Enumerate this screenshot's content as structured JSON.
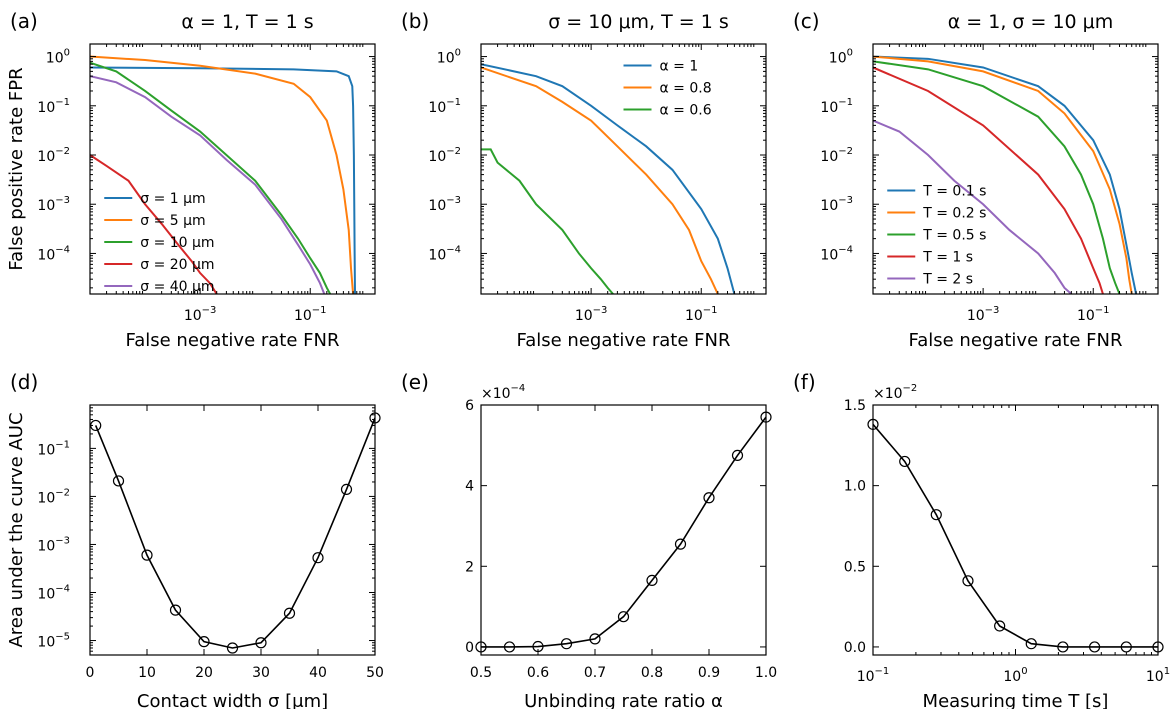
{
  "chart_data": [
    {
      "type": "line",
      "panel": "(a)",
      "title": "α = 1,  T = 1 s",
      "xlabel": "False negative rate FNR",
      "ylabel": "False positive rate FPR",
      "xscale": "log",
      "yscale": "log",
      "xlim": [
        1e-05,
        1.5
      ],
      "ylim": [
        1.5e-05,
        1.8
      ],
      "xticks": [
        {
          "v": 0.001,
          "b": "10",
          "e": "−3"
        },
        {
          "v": 0.1,
          "b": "10",
          "e": "−1"
        }
      ],
      "yticks": [
        {
          "v": 1,
          "b": "10",
          "e": "0"
        },
        {
          "v": 0.1,
          "b": "10",
          "e": "−1"
        },
        {
          "v": 0.01,
          "b": "10",
          "e": "−2"
        },
        {
          "v": 0.001,
          "b": "10",
          "e": "−3"
        },
        {
          "v": 0.0001,
          "b": "10",
          "e": "−4"
        }
      ],
      "legend": "lower-left",
      "legend_offset": [
        0.05,
        0.58
      ],
      "series": [
        {
          "name": "σ = 1 μm",
          "color": "#1f77b4",
          "x": [
            1e-05,
            0.001,
            0.05,
            0.3,
            0.5,
            0.58,
            0.6,
            0.62,
            0.63,
            0.64,
            0.65
          ],
          "y": [
            0.6,
            0.58,
            0.55,
            0.5,
            0.4,
            0.25,
            0.1,
            0.01,
            0.001,
            0.0001,
            1.5e-05
          ]
        },
        {
          "name": "σ = 5 μm",
          "color": "#ff7f0e",
          "x": [
            1e-05,
            0.0001,
            0.001,
            0.01,
            0.05,
            0.1,
            0.2,
            0.3,
            0.4,
            0.5,
            0.55,
            0.6
          ],
          "y": [
            1.0,
            0.85,
            0.65,
            0.45,
            0.28,
            0.15,
            0.05,
            0.01,
            0.002,
            0.0003,
            5e-05,
            1.5e-05
          ]
        },
        {
          "name": "σ = 10 μm",
          "color": "#2ca02c",
          "x": [
            1e-05,
            3e-05,
            0.0001,
            0.0003,
            0.001,
            0.003,
            0.01,
            0.03,
            0.06,
            0.1,
            0.15,
            0.2,
            0.23
          ],
          "y": [
            0.75,
            0.5,
            0.2,
            0.08,
            0.03,
            0.01,
            0.003,
            0.0006,
            0.0002,
            8e-05,
            4e-05,
            2e-05,
            1.5e-05
          ]
        },
        {
          "name": "σ = 20 μm",
          "color": "#d62728",
          "x": [
            1e-05,
            2e-05,
            5e-05,
            0.0001,
            0.0002,
            0.0004,
            0.0007,
            0.001,
            0.0015,
            0.002
          ],
          "y": [
            0.01,
            0.006,
            0.003,
            0.001,
            0.0004,
            0.00015,
            7e-05,
            4e-05,
            2.5e-05,
            1.5e-05
          ]
        },
        {
          "name": "σ = 40 μm",
          "color": "#9467bd",
          "x": [
            1e-05,
            3e-05,
            0.0001,
            0.0003,
            0.001,
            0.003,
            0.01,
            0.03,
            0.06,
            0.1,
            0.15,
            0.18
          ],
          "y": [
            0.4,
            0.3,
            0.15,
            0.06,
            0.025,
            0.008,
            0.0025,
            0.0005,
            0.00015,
            6e-05,
            2.5e-05,
            1.5e-05
          ]
        }
      ]
    },
    {
      "type": "line",
      "panel": "(b)",
      "title": "σ = 10 μm,  T = 1 s",
      "xlabel": "False negative rate FNR",
      "ylabel": "",
      "xscale": "log",
      "yscale": "log",
      "xlim": [
        1e-05,
        1.5
      ],
      "ylim": [
        1.5e-05,
        1.8
      ],
      "xticks": [
        {
          "v": 0.001,
          "b": "10",
          "e": "−3"
        },
        {
          "v": 0.1,
          "b": "10",
          "e": "−1"
        }
      ],
      "yticks": [
        {
          "v": 1,
          "b": "10",
          "e": "0"
        },
        {
          "v": 0.1,
          "b": "10",
          "e": "−1"
        },
        {
          "v": 0.01,
          "b": "10",
          "e": "−2"
        },
        {
          "v": 0.001,
          "b": "10",
          "e": "−3"
        },
        {
          "v": 0.0001,
          "b": "10",
          "e": "−4"
        }
      ],
      "legend": "upper-right",
      "legend_offset": [
        0.5,
        0.05
      ],
      "series": [
        {
          "name": "α = 1",
          "color": "#1f77b4",
          "x": [
            1e-05,
            0.0001,
            0.0003,
            0.001,
            0.003,
            0.01,
            0.03,
            0.1,
            0.2,
            0.3,
            0.4
          ],
          "y": [
            0.7,
            0.4,
            0.25,
            0.1,
            0.04,
            0.015,
            0.005,
            0.0008,
            0.0002,
            5e-05,
            1.5e-05
          ]
        },
        {
          "name": "α = 0.8",
          "color": "#ff7f0e",
          "x": [
            1e-05,
            0.0001,
            0.0003,
            0.001,
            0.003,
            0.01,
            0.03,
            0.06,
            0.1,
            0.15,
            0.2
          ],
          "y": [
            0.6,
            0.25,
            0.12,
            0.05,
            0.015,
            0.004,
            0.001,
            0.0003,
            7e-05,
            3e-05,
            1.5e-05
          ]
        },
        {
          "name": "α = 0.6",
          "color": "#2ca02c",
          "x": [
            1e-05,
            1.5e-05,
            2e-05,
            5e-05,
            0.0001,
            0.0003,
            0.0006,
            0.001,
            0.0015,
            0.002,
            0.0025
          ],
          "y": [
            0.013,
            0.013,
            0.007,
            0.003,
            0.001,
            0.0003,
            0.0001,
            5e-05,
            3e-05,
            2e-05,
            1.5e-05
          ]
        }
      ]
    },
    {
      "type": "line",
      "panel": "(c)",
      "title": "α = 1,  σ = 10 μm",
      "xlabel": "False negative rate FNR",
      "ylabel": "",
      "xscale": "log",
      "yscale": "log",
      "xlim": [
        1e-05,
        1.5
      ],
      "ylim": [
        1.5e-05,
        1.8
      ],
      "xticks": [
        {
          "v": 0.001,
          "b": "10",
          "e": "−3"
        },
        {
          "v": 0.1,
          "b": "10",
          "e": "−1"
        }
      ],
      "yticks": [
        {
          "v": 1,
          "b": "10",
          "e": "0"
        },
        {
          "v": 0.1,
          "b": "10",
          "e": "−1"
        },
        {
          "v": 0.01,
          "b": "10",
          "e": "−2"
        },
        {
          "v": 0.001,
          "b": "10",
          "e": "−3"
        },
        {
          "v": 0.0001,
          "b": "10",
          "e": "−4"
        }
      ],
      "legend": "lower-left",
      "legend_offset": [
        0.05,
        0.55
      ],
      "series": [
        {
          "name": "T = 0.1 s",
          "color": "#1f77b4",
          "x": [
            1e-05,
            0.0001,
            0.001,
            0.01,
            0.03,
            0.1,
            0.2,
            0.3,
            0.4,
            0.5,
            0.6
          ],
          "y": [
            1.0,
            0.9,
            0.6,
            0.25,
            0.1,
            0.02,
            0.004,
            0.0008,
            0.00015,
            4e-05,
            1.5e-05
          ]
        },
        {
          "name": "T = 0.2 s",
          "color": "#ff7f0e",
          "x": [
            1e-05,
            0.0001,
            0.001,
            0.01,
            0.03,
            0.1,
            0.2,
            0.3,
            0.4,
            0.45,
            0.5
          ],
          "y": [
            1.0,
            0.8,
            0.5,
            0.2,
            0.07,
            0.012,
            0.002,
            0.0004,
            8e-05,
            3e-05,
            1.5e-05
          ]
        },
        {
          "name": "T = 0.5 s",
          "color": "#2ca02c",
          "x": [
            1e-05,
            0.0001,
            0.001,
            0.01,
            0.03,
            0.06,
            0.1,
            0.15,
            0.2,
            0.25,
            0.3
          ],
          "y": [
            0.8,
            0.55,
            0.25,
            0.06,
            0.015,
            0.004,
            0.001,
            0.0002,
            5e-05,
            2.5e-05,
            1.5e-05
          ]
        },
        {
          "name": "T = 1 s",
          "color": "#d62728",
          "x": [
            1e-05,
            0.0001,
            0.001,
            0.01,
            0.03,
            0.06,
            0.1,
            0.13,
            0.15
          ],
          "y": [
            0.6,
            0.2,
            0.04,
            0.004,
            0.0008,
            0.0002,
            5e-05,
            2.5e-05,
            1.5e-05
          ]
        },
        {
          "name": "T = 2 s",
          "color": "#9467bd",
          "x": [
            1e-05,
            3e-05,
            0.0001,
            0.0003,
            0.001,
            0.003,
            0.01,
            0.02,
            0.03,
            0.04
          ],
          "y": [
            0.05,
            0.03,
            0.01,
            0.003,
            0.001,
            0.0003,
            0.0001,
            4e-05,
            2e-05,
            1.5e-05
          ]
        }
      ]
    },
    {
      "type": "line",
      "panel": "(d)",
      "title": "",
      "xlabel": "Contact width σ [μm]",
      "ylabel": "Area under the curve AUC",
      "xscale": "linear",
      "yscale": "log",
      "xlim": [
        0,
        50
      ],
      "ylim": [
        5e-06,
        0.8
      ],
      "xticks": [
        {
          "v": 0,
          "t": "0"
        },
        {
          "v": 10,
          "t": "10"
        },
        {
          "v": 20,
          "t": "20"
        },
        {
          "v": 30,
          "t": "30"
        },
        {
          "v": 40,
          "t": "40"
        },
        {
          "v": 50,
          "t": "50"
        }
      ],
      "yticks": [
        {
          "v": 0.1,
          "b": "10",
          "e": "−1"
        },
        {
          "v": 0.01,
          "b": "10",
          "e": "−2"
        },
        {
          "v": 0.001,
          "b": "10",
          "e": "−3"
        },
        {
          "v": 0.0001,
          "b": "10",
          "e": "−4"
        },
        {
          "v": 1e-05,
          "b": "10",
          "e": "−5"
        }
      ],
      "markers": "open-circle",
      "series": [
        {
          "color": "#000000",
          "x": [
            1,
            5,
            10,
            15,
            20,
            25,
            30,
            35,
            40,
            45,
            50
          ],
          "y": [
            0.3,
            0.021,
            0.0006,
            4.3e-05,
            9.5e-06,
            7e-06,
            9e-06,
            3.7e-05,
            0.00053,
            0.014,
            0.43
          ]
        }
      ]
    },
    {
      "type": "line",
      "panel": "(e)",
      "title": "",
      "xlabel": "Unbinding rate ratio α",
      "ylabel": "",
      "offset_text": {
        "b": "×10",
        "e": "−4"
      },
      "xscale": "linear",
      "yscale": "linear",
      "xlim": [
        0.5,
        1.0
      ],
      "ylim": [
        -0.2,
        6
      ],
      "xticks": [
        {
          "v": 0.5,
          "t": "0.5"
        },
        {
          "v": 0.6,
          "t": "0.6"
        },
        {
          "v": 0.7,
          "t": "0.7"
        },
        {
          "v": 0.8,
          "t": "0.8"
        },
        {
          "v": 0.9,
          "t": "0.9"
        },
        {
          "v": 1.0,
          "t": "1.0"
        }
      ],
      "yticks": [
        {
          "v": 0,
          "t": "0"
        },
        {
          "v": 2,
          "t": "2"
        },
        {
          "v": 4,
          "t": "4"
        },
        {
          "v": 6,
          "t": "6"
        }
      ],
      "markers": "open-circle",
      "series": [
        {
          "color": "#000000",
          "x": [
            0.5,
            0.55,
            0.6,
            0.65,
            0.7,
            0.75,
            0.8,
            0.85,
            0.9,
            0.95,
            1.0
          ],
          "y": [
            0.0,
            0.0,
            0.01,
            0.08,
            0.2,
            0.75,
            1.65,
            2.55,
            3.7,
            4.75,
            5.7
          ]
        }
      ]
    },
    {
      "type": "line",
      "panel": "(f)",
      "title": "",
      "xlabel": "Measuring time T [s]",
      "ylabel": "",
      "offset_text": {
        "b": "×10",
        "e": "−2"
      },
      "xscale": "log",
      "yscale": "linear",
      "xlim": [
        0.1,
        10
      ],
      "ylim": [
        -0.05,
        1.5
      ],
      "xticks": [
        {
          "v": 0.1,
          "b": "10",
          "e": "−1"
        },
        {
          "v": 1,
          "b": "10",
          "e": "0"
        },
        {
          "v": 10,
          "b": "10",
          "e": "1"
        }
      ],
      "yticks": [
        {
          "v": 0,
          "t": "0.0"
        },
        {
          "v": 0.5,
          "t": "0.5"
        },
        {
          "v": 1.0,
          "t": "1.0"
        },
        {
          "v": 1.5,
          "t": "1.5"
        }
      ],
      "markers": "open-circle",
      "series": [
        {
          "color": "#000000",
          "x": [
            0.1,
            0.167,
            0.278,
            0.464,
            0.774,
            1.29,
            2.15,
            3.59,
            5.99,
            10
          ],
          "y": [
            1.38,
            1.15,
            0.82,
            0.41,
            0.13,
            0.02,
            0.0,
            0.0,
            0.0,
            0.0
          ]
        }
      ]
    }
  ]
}
